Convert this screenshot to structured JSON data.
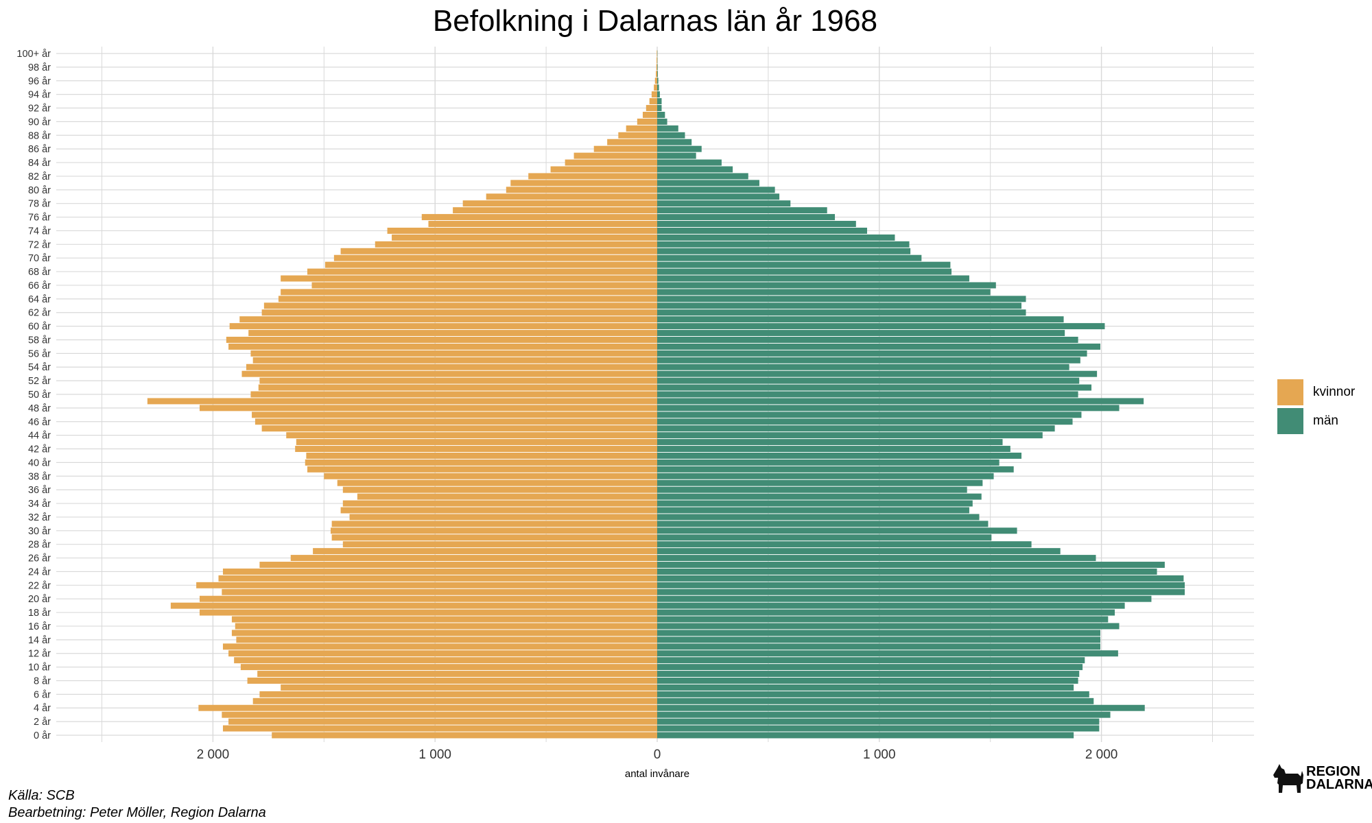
{
  "chart_data": {
    "type": "bar",
    "orientation": "horizontal-population-pyramid",
    "title": "Befolkning i Dalarnas län år 1968",
    "xlabel": "antal invånare",
    "ylabel": "",
    "xlim": [
      -2700,
      2700
    ],
    "x_ticks": [
      -2000,
      -1000,
      0,
      1000,
      2000
    ],
    "x_tick_labels": [
      "2 000",
      "1 000",
      "0",
      "1 000",
      "2 000"
    ],
    "categories": [
      "0 år",
      "1 år",
      "2 år",
      "3 år",
      "4 år",
      "5 år",
      "6 år",
      "7 år",
      "8 år",
      "9 år",
      "10 år",
      "11 år",
      "12 år",
      "13 år",
      "14 år",
      "15 år",
      "16 år",
      "17 år",
      "18 år",
      "19 år",
      "20 år",
      "21 år",
      "22 år",
      "23 år",
      "24 år",
      "25 år",
      "26 år",
      "27 år",
      "28 år",
      "29 år",
      "30 år",
      "31 år",
      "32 år",
      "33 år",
      "34 år",
      "35 år",
      "36 år",
      "37 år",
      "38 år",
      "39 år",
      "40 år",
      "41 år",
      "42 år",
      "43 år",
      "44 år",
      "45 år",
      "46 år",
      "47 år",
      "48 år",
      "49 år",
      "50 år",
      "51 år",
      "52 år",
      "53 år",
      "54 år",
      "55 år",
      "56 år",
      "57 år",
      "58 år",
      "59 år",
      "60 år",
      "61 år",
      "62 år",
      "63 år",
      "64 år",
      "65 år",
      "66 år",
      "67 år",
      "68 år",
      "69 år",
      "70 år",
      "71 år",
      "72 år",
      "73 år",
      "74 år",
      "75 år",
      "76 år",
      "77 år",
      "78 år",
      "79 år",
      "80 år",
      "81 år",
      "82 år",
      "83 år",
      "84 år",
      "85 år",
      "86 år",
      "87 år",
      "88 år",
      "89 år",
      "90 år",
      "91 år",
      "92 år",
      "93 år",
      "94 år",
      "95 år",
      "96 år",
      "97 år",
      "98 år",
      "99 år",
      "100+ år"
    ],
    "tick_labels": [
      "0 år",
      "2 år",
      "4 år",
      "6 år",
      "8 år",
      "10 år",
      "12 år",
      "14 år",
      "16 år",
      "18 år",
      "20 år",
      "22 år",
      "24 år",
      "26 år",
      "28 år",
      "30 år",
      "32 år",
      "34 år",
      "36 år",
      "38 år",
      "40 år",
      "42 år",
      "44 år",
      "46 år",
      "48 år",
      "50 år",
      "52 år",
      "54 år",
      "56 år",
      "58 år",
      "60 år",
      "62 år",
      "64 år",
      "66 år",
      "68 år",
      "70 år",
      "72 år",
      "74 år",
      "76 år",
      "78 år",
      "80 år",
      "82 år",
      "84 år",
      "86 år",
      "88 år",
      "90 år",
      "92 år",
      "94 år",
      "96 år",
      "98 år",
      "100+ år"
    ],
    "series": [
      {
        "name": "kvinnor",
        "color": "#E5A752",
        "values": [
          1735,
          1955,
          1930,
          1960,
          2065,
          1820,
          1790,
          1695,
          1845,
          1800,
          1875,
          1905,
          1930,
          1955,
          1895,
          1915,
          1900,
          1915,
          2060,
          2190,
          2060,
          1960,
          2075,
          1975,
          1955,
          1790,
          1650,
          1550,
          1415,
          1465,
          1470,
          1465,
          1385,
          1425,
          1415,
          1350,
          1415,
          1440,
          1500,
          1575,
          1585,
          1580,
          1630,
          1625,
          1670,
          1780,
          1810,
          1825,
          2060,
          2295,
          1830,
          1795,
          1790,
          1870,
          1850,
          1820,
          1830,
          1930,
          1940,
          1840,
          1925,
          1880,
          1780,
          1770,
          1705,
          1695,
          1555,
          1695,
          1575,
          1495,
          1455,
          1425,
          1270,
          1195,
          1215,
          1030,
          1060,
          920,
          875,
          770,
          680,
          660,
          580,
          480,
          415,
          375,
          285,
          225,
          175,
          140,
          90,
          65,
          50,
          35,
          25,
          15,
          10,
          6,
          4,
          3,
          2
        ]
      },
      {
        "name": "män",
        "color": "#418C75",
        "values": [
          1875,
          1990,
          1990,
          2040,
          2195,
          1965,
          1945,
          1875,
          1895,
          1900,
          1915,
          1925,
          2075,
          1995,
          1995,
          1995,
          2080,
          2030,
          2060,
          2105,
          2225,
          2375,
          2375,
          2370,
          2250,
          2285,
          1975,
          1815,
          1685,
          1505,
          1620,
          1490,
          1450,
          1405,
          1420,
          1460,
          1395,
          1465,
          1515,
          1605,
          1540,
          1640,
          1590,
          1555,
          1735,
          1790,
          1870,
          1910,
          2080,
          2190,
          1895,
          1955,
          1900,
          1980,
          1855,
          1905,
          1935,
          1995,
          1895,
          1835,
          2015,
          1830,
          1660,
          1640,
          1660,
          1500,
          1525,
          1405,
          1325,
          1320,
          1190,
          1140,
          1135,
          1070,
          945,
          895,
          800,
          765,
          600,
          550,
          530,
          460,
          410,
          340,
          290,
          175,
          200,
          155,
          125,
          95,
          45,
          35,
          20,
          20,
          12,
          8,
          5,
          3,
          2,
          1,
          1
        ]
      }
    ],
    "grid": true,
    "legend": "right"
  },
  "legend": {
    "items": [
      {
        "label": "kvinnor",
        "color": "#E5A752"
      },
      {
        "label": "män",
        "color": "#418C75"
      }
    ]
  },
  "footer": {
    "source": "Källa: SCB",
    "processing": "Bearbetning: Peter Möller, Region Dalarna"
  },
  "logo": {
    "line1": "REGION",
    "line2": "DALARNA"
  }
}
